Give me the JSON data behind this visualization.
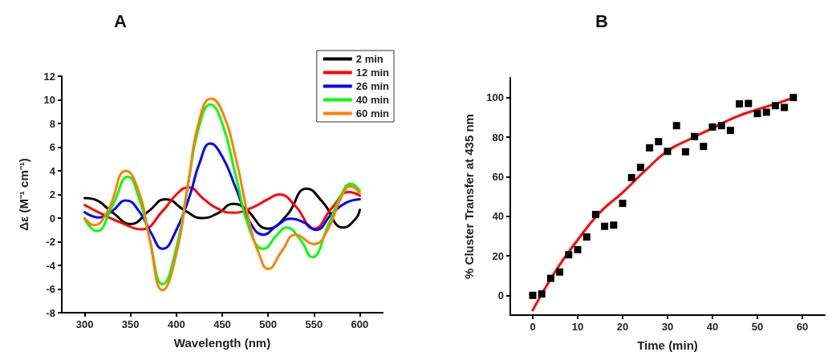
{
  "chart_data": [
    {
      "type": "line",
      "title": "A",
      "xlabel": "Wavelength (nm)",
      "ylabel": "Δε (M⁻¹ cm⁻¹)",
      "xlim": [
        275,
        625
      ],
      "xticks": [
        300,
        350,
        400,
        450,
        500,
        550,
        600
      ],
      "ylim": [
        -8,
        12
      ],
      "yticks": [
        -8,
        -6,
        -4,
        -2,
        0,
        2,
        4,
        6,
        8,
        10,
        12
      ],
      "legend": "top right",
      "marker": "none",
      "grid": false,
      "series": [
        {
          "name": "2 min",
          "color": "#000000",
          "x": [
            300,
            310,
            330,
            350,
            370,
            388,
            410,
            428,
            445,
            462,
            475,
            500,
            520,
            542,
            560,
            582,
            595,
            600
          ],
          "values": [
            1.7,
            1.6,
            0.5,
            -0.5,
            0.6,
            1.6,
            0.6,
            0.0,
            0.4,
            1.2,
            0.8,
            -0.9,
            0.2,
            2.5,
            1.3,
            -0.8,
            -0.1,
            0.7
          ]
        },
        {
          "name": "12 min",
          "color": "#ff0000",
          "x": [
            300,
            320,
            340,
            362,
            385,
            400,
            413,
            430,
            445,
            462,
            480,
            500,
            512,
            530,
            550,
            570,
            588,
            600
          ],
          "values": [
            1.1,
            0.3,
            -0.4,
            -0.95,
            0.6,
            2.0,
            2.6,
            1.6,
            0.8,
            0.45,
            0.8,
            1.6,
            2.0,
            1.0,
            -0.9,
            0.9,
            2.2,
            1.9
          ]
        },
        {
          "name": "26 min",
          "color": "#0000ff",
          "x": [
            300,
            315,
            330,
            345,
            360,
            372,
            385,
            400,
            415,
            425,
            437,
            450,
            465,
            480,
            495,
            510,
            525,
            540,
            552,
            570,
            585,
            600
          ],
          "values": [
            0.5,
            0.05,
            0.6,
            1.5,
            0.5,
            -1.2,
            -2.6,
            -1.0,
            2.0,
            4.6,
            6.3,
            5.2,
            2.5,
            -0.3,
            -1.4,
            -0.6,
            -0.05,
            -0.4,
            -1.0,
            0.4,
            1.3,
            1.6
          ]
        },
        {
          "name": "40 min",
          "color": "#00ff00",
          "x": [
            300,
            313,
            330,
            347,
            360,
            370,
            385,
            400,
            413,
            425,
            437,
            450,
            465,
            480,
            495,
            510,
            520,
            535,
            548,
            565,
            580,
            590,
            600
          ],
          "values": [
            -0.1,
            -1.1,
            1.0,
            3.5,
            1.5,
            -1.5,
            -5.6,
            -2.5,
            3.0,
            7.8,
            9.6,
            8.0,
            3.5,
            -1.0,
            -2.6,
            -1.4,
            -0.8,
            -1.8,
            -3.3,
            -0.7,
            2.0,
            2.9,
            2.3
          ]
        },
        {
          "name": "60 min",
          "color": "#ff8000",
          "x": [
            300,
            310,
            325,
            345,
            360,
            370,
            385,
            400,
            413,
            425,
            438,
            450,
            465,
            480,
            490,
            500,
            515,
            530,
            550,
            565,
            580,
            590,
            600
          ],
          "values": [
            0.0,
            -0.6,
            0.6,
            4.0,
            2.0,
            -1.5,
            -6.1,
            -3.0,
            3.0,
            8.3,
            10.1,
            9.0,
            5.0,
            -0.5,
            -3.0,
            -4.3,
            -2.8,
            -1.4,
            -2.2,
            -1.0,
            1.8,
            2.7,
            2.1
          ]
        }
      ]
    },
    {
      "type": "scatter",
      "title": "B",
      "xlabel": "Time (min)",
      "ylabel": "% Cluster Transfer at 435 nm",
      "xlim": [
        -5,
        65
      ],
      "xticks": [
        0,
        10,
        20,
        30,
        40,
        50,
        60
      ],
      "ylim": [
        -10,
        110
      ],
      "yticks": [
        0,
        20,
        40,
        60,
        80,
        100
      ],
      "legend": false,
      "marker": "square",
      "grid": false,
      "series": [
        {
          "color": "#000000",
          "x": [
            0,
            2,
            4,
            6,
            8,
            10,
            12,
            14,
            16,
            18,
            20,
            22,
            24,
            26,
            28,
            30,
            32,
            34,
            36,
            38,
            40,
            42,
            44,
            46,
            48,
            50,
            52,
            54,
            56,
            58
          ],
          "values": [
            0,
            0.7,
            8.6,
            11.8,
            20.5,
            23.1,
            29.5,
            40.9,
            34.9,
            35.5,
            46.5,
            59.5,
            64.7,
            74.6,
            77.7,
            72.8,
            85.8,
            72.6,
            80.3,
            75.3,
            85.1,
            85.8,
            83.4,
            96.8,
            97,
            91.9,
            92.6,
            95.9,
            95,
            100
          ]
        },
        {
          "type": "line",
          "marker": "none",
          "color": "#ff0000",
          "x": [
            0,
            5,
            10,
            15,
            20,
            25,
            30,
            35,
            40,
            45,
            50,
            55,
            58
          ],
          "values": [
            -7.5,
            12,
            28,
            42,
            52,
            63,
            73,
            79,
            84.5,
            90,
            94,
            97.5,
            100
          ]
        }
      ]
    }
  ]
}
